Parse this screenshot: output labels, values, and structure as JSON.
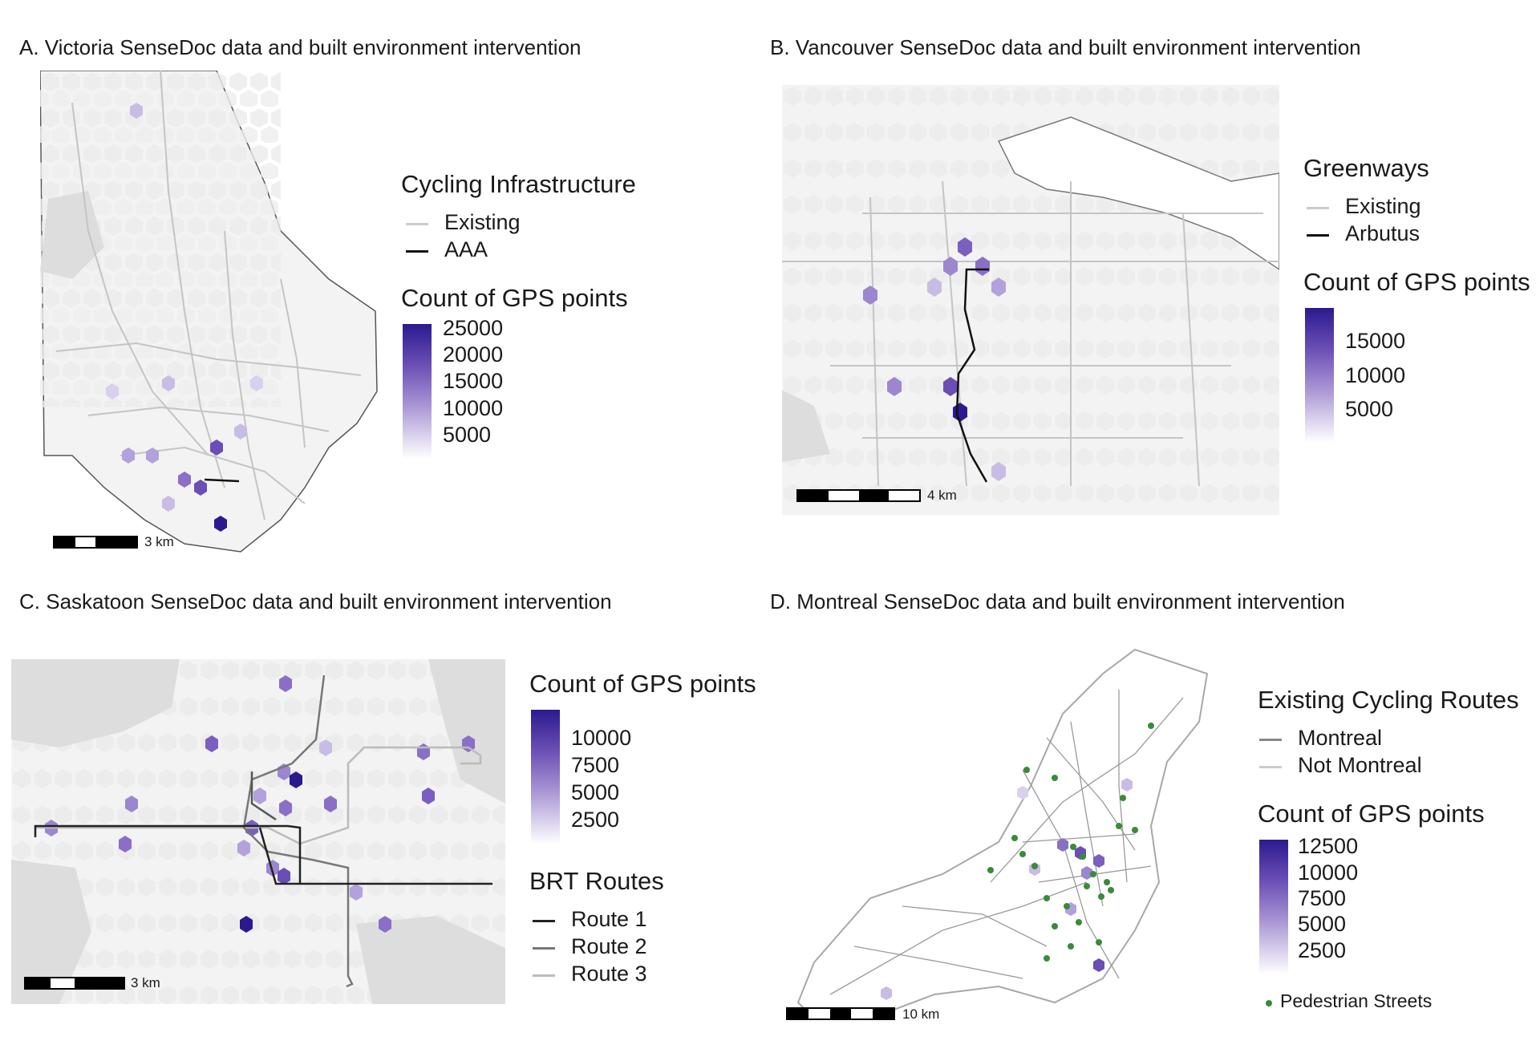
{
  "panels": {
    "a": {
      "title": "A. Victoria SenseDoc data and built environment intervention",
      "legend_infra_title": "Cycling Infrastructure",
      "infra_items": [
        {
          "label": "Existing",
          "color": "#cccccc"
        },
        {
          "label": "AAA",
          "color": "#111111"
        }
      ],
      "count_title": "Count of GPS points",
      "ticks": [
        "25000",
        "20000",
        "15000",
        "10000",
        "5000"
      ],
      "scale_label": "3 km"
    },
    "b": {
      "title": "B. Vancouver SenseDoc data and built environment intervention",
      "legend_infra_title": "Greenways",
      "infra_items": [
        {
          "label": "Existing",
          "color": "#cccccc"
        },
        {
          "label": "Arbutus",
          "color": "#111111"
        }
      ],
      "count_title": "Count of GPS points",
      "ticks": [
        "15000",
        "10000",
        "5000"
      ],
      "scale_label": "4 km"
    },
    "c": {
      "title": "C. Saskatoon SenseDoc data and built environment intervention",
      "count_title": "Count of GPS points",
      "ticks": [
        "10000",
        "7500",
        "5000",
        "2500"
      ],
      "legend_infra_title": "BRT Routes",
      "infra_items": [
        {
          "label": "Route 1",
          "color": "#222222"
        },
        {
          "label": "Route 2",
          "color": "#777777"
        },
        {
          "label": "Route 3",
          "color": "#bbbbbb"
        }
      ],
      "scale_label": "3 km"
    },
    "d": {
      "title": "D. Montreal SenseDoc data and built environment intervention",
      "legend_infra_title": "Existing Cycling Routes",
      "infra_items": [
        {
          "label": "Montreal",
          "color": "#888888"
        },
        {
          "label": "Not Montreal",
          "color": "#cccccc"
        }
      ],
      "count_title": "Count of GPS points",
      "ticks": [
        "12500",
        "10000",
        "7500",
        "5000",
        "2500"
      ],
      "point_label": "Pedestrian Streets",
      "point_color": "#3a8a3a",
      "scale_label": "10 km"
    }
  },
  "colors": {
    "hex_low": "#e4ddf2",
    "hex_mid": "#9c86cf",
    "hex_high": "#2b1a8f",
    "land": "#f2f2f2",
    "water": "#d9d9d9"
  }
}
